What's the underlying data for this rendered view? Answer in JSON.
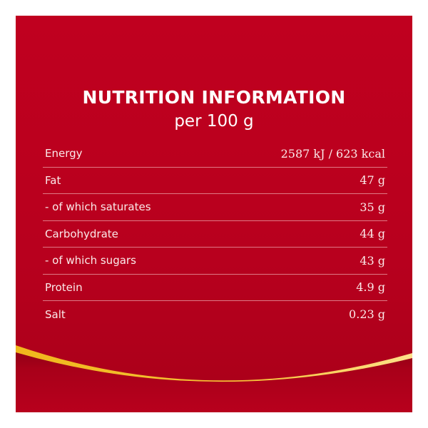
{
  "header": {
    "title": "NUTRITION INFORMATION",
    "subtitle": "per 100 g"
  },
  "rows": [
    {
      "label": "Energy",
      "value": "2587 kJ / 623 kcal"
    },
    {
      "label": "Fat",
      "value": "47 g"
    },
    {
      "label": "- of which saturates",
      "value": "35 g"
    },
    {
      "label": "Carbohydrate",
      "value": "44 g"
    },
    {
      "label": "- of which sugars",
      "value": "43 g"
    },
    {
      "label": "Protein",
      "value": "4.9 g"
    },
    {
      "label": "Salt",
      "value": "0.23 g"
    }
  ],
  "colors": {
    "background": "#c0001f",
    "accent": "#f2b820",
    "text": "#ffffff"
  }
}
